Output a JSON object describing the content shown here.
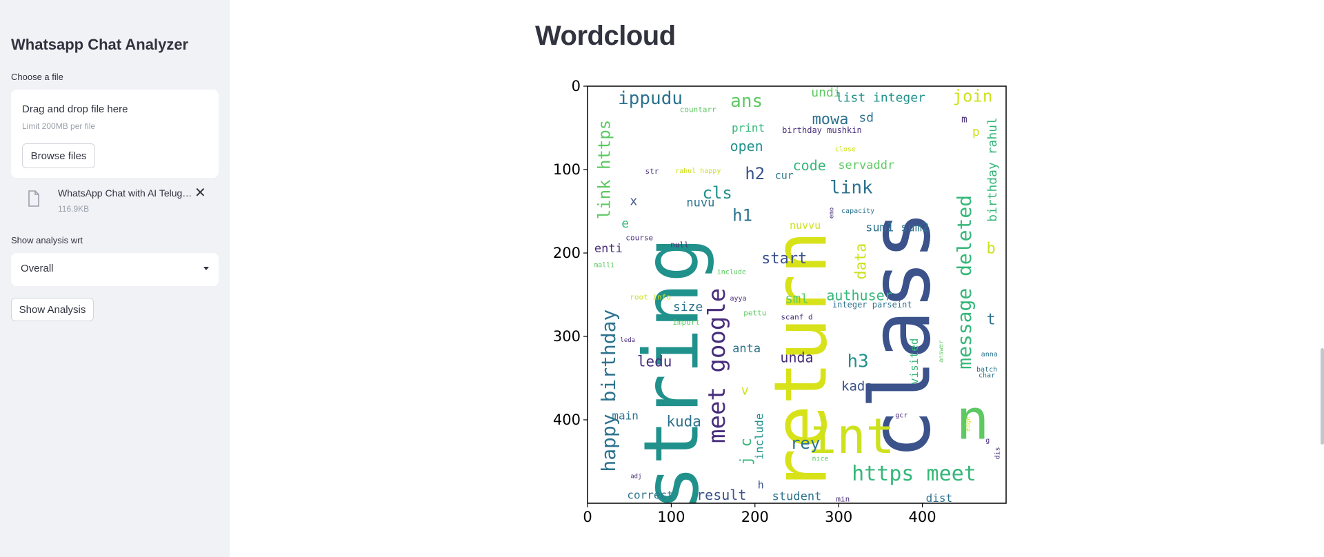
{
  "sidebar": {
    "title": "Whatsapp Chat Analyzer",
    "file_label": "Choose a file",
    "uploader": {
      "drag_text": "Drag and drop file here",
      "limit_text": "Limit 200MB per file",
      "browse_label": "Browse files"
    },
    "file": {
      "name": "WhatsApp Chat with AI Telugu Coders.txt",
      "size": "116.9KB",
      "icon": "file-icon"
    },
    "analysis_label": "Show analysis wrt",
    "select_value": "Overall",
    "show_button": "Show Analysis"
  },
  "main": {
    "title": "Wordcloud"
  },
  "chart_data": {
    "type": "table",
    "xlim": [
      0,
      500
    ],
    "ylim": [
      0,
      500
    ],
    "y_inverted": true,
    "x_ticks": [
      "0",
      "100",
      "200",
      "300",
      "400"
    ],
    "y_ticks": [
      "0",
      "100",
      "200",
      "300",
      "400"
    ],
    "words": [
      {
        "text": "class",
        "x": 375,
        "y": 298,
        "size": 120,
        "color": "#3b528b",
        "rotate": true
      },
      {
        "text": "string",
        "x": 100,
        "y": 345,
        "size": 110,
        "color": "#21918c",
        "rotate": true
      },
      {
        "text": "return",
        "x": 255,
        "y": 330,
        "size": 105,
        "color": "#d8e219",
        "rotate": true
      },
      {
        "text": "int",
        "x": 315,
        "y": 420,
        "size": 70,
        "color": "#cde11d",
        "rotate": false
      },
      {
        "text": "n",
        "x": 460,
        "y": 400,
        "size": 80,
        "color": "#5ec962",
        "rotate": false
      },
      {
        "text": "meet google",
        "x": 155,
        "y": 335,
        "size": 34,
        "color": "#472d7b",
        "rotate": true
      },
      {
        "text": "message deleted",
        "x": 450,
        "y": 235,
        "size": 28,
        "color": "#35b779",
        "rotate": true
      },
      {
        "text": "happy birthday",
        "x": 25,
        "y": 365,
        "size": 28,
        "color": "#2c728e",
        "rotate": true
      },
      {
        "text": "https meet",
        "x": 390,
        "y": 465,
        "size": 30,
        "color": "#35b779",
        "rotate": false
      },
      {
        "text": "link https",
        "x": 20,
        "y": 100,
        "size": 24,
        "color": "#5ec962",
        "rotate": true
      },
      {
        "text": "ippudu",
        "x": 75,
        "y": 15,
        "size": 26,
        "color": "#2c728e",
        "rotate": false
      },
      {
        "text": "ans",
        "x": 190,
        "y": 18,
        "size": 26,
        "color": "#5ec962",
        "rotate": false
      },
      {
        "text": "link",
        "x": 315,
        "y": 122,
        "size": 26,
        "color": "#2c728e",
        "rotate": false
      },
      {
        "text": "join",
        "x": 460,
        "y": 12,
        "size": 24,
        "color": "#cde11d",
        "rotate": false
      },
      {
        "text": "undi",
        "x": 285,
        "y": 8,
        "size": 18,
        "color": "#5ec962",
        "rotate": false
      },
      {
        "text": "list integer",
        "x": 350,
        "y": 14,
        "size": 18,
        "color": "#21918c",
        "rotate": false
      },
      {
        "text": "mowa",
        "x": 290,
        "y": 40,
        "size": 22,
        "color": "#2c728e",
        "rotate": false
      },
      {
        "text": "sd",
        "x": 333,
        "y": 38,
        "size": 18,
        "color": "#2c728e",
        "rotate": false
      },
      {
        "text": "birthday rahul",
        "x": 484,
        "y": 100,
        "size": 18,
        "color": "#35b779",
        "rotate": true
      },
      {
        "text": "m",
        "x": 450,
        "y": 40,
        "size": 14,
        "color": "#472d7b",
        "rotate": false
      },
      {
        "text": "p",
        "x": 464,
        "y": 55,
        "size": 18,
        "color": "#cde11d",
        "rotate": false
      },
      {
        "text": "countarr",
        "x": 132,
        "y": 28,
        "size": 11,
        "color": "#5ec962",
        "rotate": false
      },
      {
        "text": "print",
        "x": 192,
        "y": 50,
        "size": 16,
        "color": "#35b779",
        "rotate": false
      },
      {
        "text": "birthday mushkin",
        "x": 280,
        "y": 53,
        "size": 12,
        "color": "#472d7b",
        "rotate": false
      },
      {
        "text": "open",
        "x": 190,
        "y": 72,
        "size": 20,
        "color": "#21918c",
        "rotate": false
      },
      {
        "text": "close",
        "x": 308,
        "y": 76,
        "size": 10,
        "color": "#cde11d",
        "rotate": false
      },
      {
        "text": "code",
        "x": 265,
        "y": 95,
        "size": 20,
        "color": "#35b779",
        "rotate": false
      },
      {
        "text": "servaddr",
        "x": 333,
        "y": 95,
        "size": 17,
        "color": "#5ec962",
        "rotate": false
      },
      {
        "text": "h2",
        "x": 200,
        "y": 105,
        "size": 24,
        "color": "#3b528b",
        "rotate": false
      },
      {
        "text": "cur",
        "x": 235,
        "y": 107,
        "size": 15,
        "color": "#2c728e",
        "rotate": false
      },
      {
        "text": "str",
        "x": 77,
        "y": 102,
        "size": 11,
        "color": "#472d7b",
        "rotate": false
      },
      {
        "text": "rahul happy",
        "x": 132,
        "y": 102,
        "size": 10,
        "color": "#cde11d",
        "rotate": false
      },
      {
        "text": "cls",
        "x": 155,
        "y": 128,
        "size": 24,
        "color": "#21918c",
        "rotate": false
      },
      {
        "text": "x",
        "x": 55,
        "y": 138,
        "size": 18,
        "color": "#3b528b",
        "rotate": false
      },
      {
        "text": "nuvu",
        "x": 135,
        "y": 140,
        "size": 17,
        "color": "#2c728e",
        "rotate": false
      },
      {
        "text": "h1",
        "x": 185,
        "y": 155,
        "size": 24,
        "color": "#2c728e",
        "rotate": false
      },
      {
        "text": "emo",
        "x": 292,
        "y": 152,
        "size": 9,
        "color": "#472d7b",
        "rotate": true
      },
      {
        "text": "capacity",
        "x": 323,
        "y": 150,
        "size": 10,
        "color": "#2c728e",
        "rotate": false
      },
      {
        "text": "nuvvu",
        "x": 260,
        "y": 167,
        "size": 15,
        "color": "#cde11d",
        "rotate": false
      },
      {
        "text": "sum1 sum2",
        "x": 370,
        "y": 170,
        "size": 17,
        "color": "#2c728e",
        "rotate": false
      },
      {
        "text": "e",
        "x": 45,
        "y": 165,
        "size": 18,
        "color": "#35b779",
        "rotate": false
      },
      {
        "text": "course",
        "x": 62,
        "y": 182,
        "size": 11,
        "color": "#472d7b",
        "rotate": false
      },
      {
        "text": "null",
        "x": 110,
        "y": 190,
        "size": 11,
        "color": "#472d7b",
        "rotate": false
      },
      {
        "text": "b",
        "x": 482,
        "y": 195,
        "size": 22,
        "color": "#cde11d",
        "rotate": false
      },
      {
        "text": "enti",
        "x": 25,
        "y": 195,
        "size": 17,
        "color": "#472d7b",
        "rotate": false
      },
      {
        "text": "data",
        "x": 327,
        "y": 210,
        "size": 22,
        "color": "#cde11d",
        "rotate": true
      },
      {
        "text": "start",
        "x": 235,
        "y": 207,
        "size": 22,
        "color": "#3b528b",
        "rotate": false
      },
      {
        "text": "malli",
        "x": 20,
        "y": 215,
        "size": 10,
        "color": "#5ec962",
        "rotate": false
      },
      {
        "text": "include",
        "x": 172,
        "y": 223,
        "size": 10,
        "color": "#5ec962",
        "rotate": false
      },
      {
        "text": "authuser",
        "x": 325,
        "y": 251,
        "size": 20,
        "color": "#35b779",
        "rotate": false
      },
      {
        "text": "sml",
        "x": 250,
        "y": 255,
        "size": 19,
        "color": "#5ec962",
        "rotate": false
      },
      {
        "text": "root info",
        "x": 75,
        "y": 253,
        "size": 11,
        "color": "#cde11d",
        "rotate": false
      },
      {
        "text": "ayya",
        "x": 180,
        "y": 255,
        "size": 10,
        "color": "#472d7b",
        "rotate": false
      },
      {
        "text": "integer parseint",
        "x": 340,
        "y": 262,
        "size": 12,
        "color": "#2c728e",
        "rotate": false
      },
      {
        "text": "size",
        "x": 120,
        "y": 265,
        "size": 18,
        "color": "#2c728e",
        "rotate": false
      },
      {
        "text": "pettu",
        "x": 200,
        "y": 272,
        "size": 11,
        "color": "#5ec962",
        "rotate": false
      },
      {
        "text": "scanf d",
        "x": 250,
        "y": 277,
        "size": 11,
        "color": "#472d7b",
        "rotate": false
      },
      {
        "text": "t",
        "x": 482,
        "y": 280,
        "size": 22,
        "color": "#2c728e",
        "rotate": false
      },
      {
        "text": "import",
        "x": 118,
        "y": 283,
        "size": 11,
        "color": "#5ec962",
        "rotate": false
      },
      {
        "text": "visited",
        "x": 390,
        "y": 330,
        "size": 16,
        "color": "#35b779",
        "rotate": true
      },
      {
        "text": "answer",
        "x": 423,
        "y": 318,
        "size": 9,
        "color": "#5ec962",
        "rotate": true
      },
      {
        "text": "leda",
        "x": 48,
        "y": 305,
        "size": 9,
        "color": "#472d7b",
        "rotate": false
      },
      {
        "text": "anta",
        "x": 190,
        "y": 315,
        "size": 17,
        "color": "#2c728e",
        "rotate": false
      },
      {
        "text": "anna",
        "x": 480,
        "y": 322,
        "size": 10,
        "color": "#2c728e",
        "rotate": false
      },
      {
        "text": "unda",
        "x": 250,
        "y": 325,
        "size": 20,
        "color": "#472d7b",
        "rotate": false
      },
      {
        "text": "h3",
        "x": 323,
        "y": 330,
        "size": 26,
        "color": "#21918c",
        "rotate": false
      },
      {
        "text": "ledu",
        "x": 80,
        "y": 330,
        "size": 21,
        "color": "#472d7b",
        "rotate": false
      },
      {
        "text": "batch",
        "x": 477,
        "y": 340,
        "size": 10,
        "color": "#2c728e",
        "rotate": false
      },
      {
        "text": "char",
        "x": 477,
        "y": 347,
        "size": 10,
        "color": "#2c728e",
        "rotate": false
      },
      {
        "text": "kada",
        "x": 322,
        "y": 360,
        "size": 19,
        "color": "#3b528b",
        "rotate": false
      },
      {
        "text": "v",
        "x": 188,
        "y": 365,
        "size": 19,
        "color": "#cde11d",
        "rotate": false
      },
      {
        "text": "main",
        "x": 45,
        "y": 395,
        "size": 16,
        "color": "#2c728e",
        "rotate": false
      },
      {
        "text": "gcr",
        "x": 375,
        "y": 395,
        "size": 10,
        "color": "#472d7b",
        "rotate": false
      },
      {
        "text": "kuda",
        "x": 115,
        "y": 402,
        "size": 21,
        "color": "#2c728e",
        "rotate": false
      },
      {
        "text": "edge",
        "x": 455,
        "y": 405,
        "size": 9,
        "color": "#cde11d",
        "rotate": true
      },
      {
        "text": "j c",
        "x": 190,
        "y": 438,
        "size": 22,
        "color": "#35b779",
        "rotate": true
      },
      {
        "text": "include",
        "x": 205,
        "y": 420,
        "size": 16,
        "color": "#21918c",
        "rotate": true
      },
      {
        "text": "rey",
        "x": 260,
        "y": 428,
        "size": 24,
        "color": "#2c728e",
        "rotate": false
      },
      {
        "text": "g",
        "x": 478,
        "y": 425,
        "size": 10,
        "color": "#472d7b",
        "rotate": false
      },
      {
        "text": "dis",
        "x": 490,
        "y": 440,
        "size": 10,
        "color": "#472d7b",
        "rotate": true
      },
      {
        "text": "nice",
        "x": 278,
        "y": 447,
        "size": 10,
        "color": "#5ec962",
        "rotate": false
      },
      {
        "text": "adj",
        "x": 58,
        "y": 468,
        "size": 9,
        "color": "#472d7b",
        "rotate": false
      },
      {
        "text": "h",
        "x": 207,
        "y": 478,
        "size": 15,
        "color": "#3b528b",
        "rotate": false
      },
      {
        "text": "result",
        "x": 160,
        "y": 490,
        "size": 20,
        "color": "#3b528b",
        "rotate": false
      },
      {
        "text": "correct",
        "x": 75,
        "y": 490,
        "size": 16,
        "color": "#2c728e",
        "rotate": false
      },
      {
        "text": "student",
        "x": 250,
        "y": 492,
        "size": 17,
        "color": "#2c728e",
        "rotate": false
      },
      {
        "text": "dist",
        "x": 420,
        "y": 494,
        "size": 16,
        "color": "#2c728e",
        "rotate": false
      },
      {
        "text": "min",
        "x": 305,
        "y": 495,
        "size": 11,
        "color": "#472d7b",
        "rotate": false
      }
    ]
  }
}
